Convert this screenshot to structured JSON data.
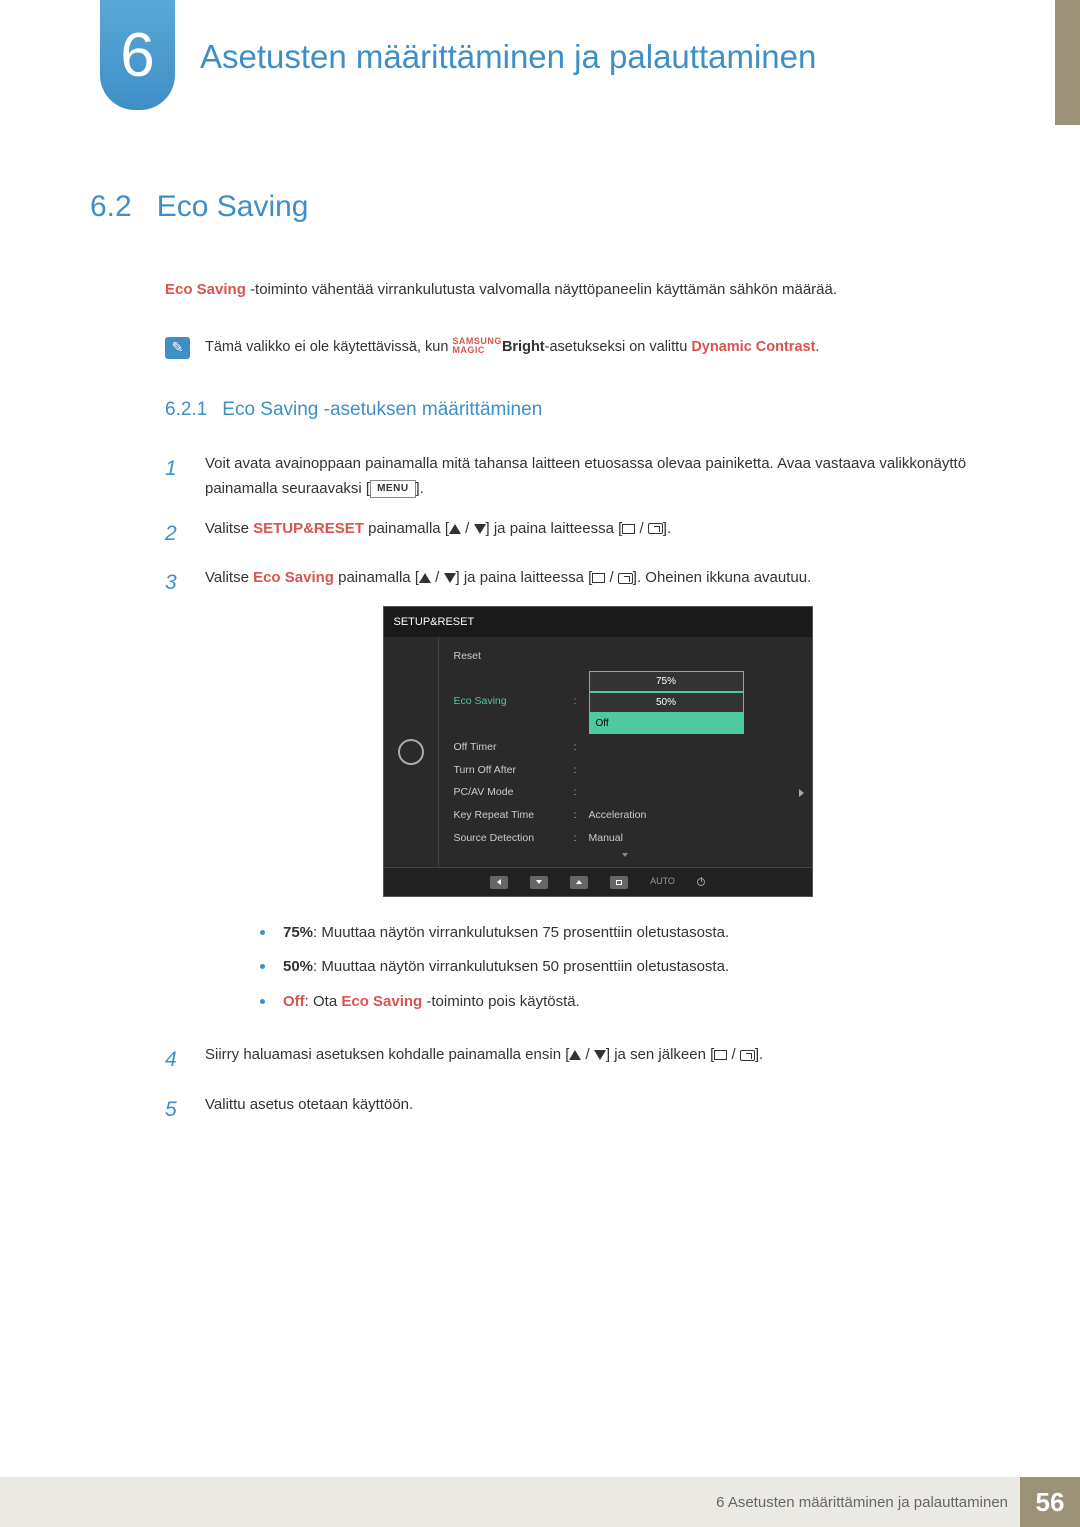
{
  "chapter": {
    "number": "6",
    "title": "Asetusten määrittäminen ja palauttaminen"
  },
  "section": {
    "number": "6.2",
    "title": "Eco Saving"
  },
  "intro": {
    "highlight": "Eco Saving",
    "text": " -toiminto vähentää virrankulutusta valvomalla näyttöpaneelin käyttämän sähkön määrää."
  },
  "note": {
    "pre": "Tämä valikko ei ole käytettävissä, kun ",
    "magic_top": "SAMSUNG",
    "magic_bottom": "MAGIC",
    "bright": "Bright",
    "mid": "-asetukseksi on valittu ",
    "dynamic": "Dynamic Contrast",
    "end": "."
  },
  "subsection": {
    "number": "6.2.1",
    "title": "Eco Saving -asetuksen määrittäminen"
  },
  "steps": {
    "s1": {
      "num": "1",
      "a": "Voit avata avainoppaan painamalla mitä tahansa laitteen etuosassa olevaa painiketta. Avaa vastaava valikkonäyttö painamalla seuraavaksi [",
      "menu": "MENU",
      "b": "]."
    },
    "s2": {
      "num": "2",
      "a": "Valitse ",
      "setup": "SETUP&RESET",
      "b": " painamalla [",
      "c": "] ja paina laitteessa [",
      "d": "]."
    },
    "s3": {
      "num": "3",
      "a": "Valitse ",
      "eco": "Eco Saving",
      "b": " painamalla [",
      "c": "] ja paina laitteessa [",
      "d": "]. Oheinen ikkuna avautuu."
    },
    "s4": {
      "num": "4",
      "a": "Siirry haluamasi asetuksen kohdalle painamalla ensin [",
      "b": "] ja sen jälkeen [",
      "c": "]."
    },
    "s5": {
      "num": "5",
      "a": "Valittu asetus otetaan käyttöön."
    }
  },
  "osd": {
    "title": "SETUP&RESET",
    "rows": {
      "reset": "Reset",
      "eco": "Eco Saving",
      "off_timer": "Off Timer",
      "turn_off": "Turn Off After",
      "pcav": "PC/AV Mode",
      "key_repeat": "Key Repeat Time",
      "key_repeat_val": "Acceleration",
      "src": "Source Detection",
      "src_val": "Manual"
    },
    "dropdown": {
      "opt1": "75%",
      "opt2": "50%",
      "opt3": "Off"
    },
    "auto": "AUTO"
  },
  "bullets": {
    "b1": {
      "bold": "75%",
      "text": ": Muuttaa näytön virrankulutuksen 75 prosenttiin oletustasosta."
    },
    "b2": {
      "bold": "50%",
      "text": ": Muuttaa näytön virrankulutuksen 50 prosenttiin oletustasosta."
    },
    "b3": {
      "bold": "Off",
      "mid": ": Ota ",
      "eco": "Eco Saving",
      "end": " -toiminto pois käytöstä."
    }
  },
  "footer": {
    "text": "6 Asetusten määrittäminen ja palauttaminen",
    "page": "56"
  }
}
